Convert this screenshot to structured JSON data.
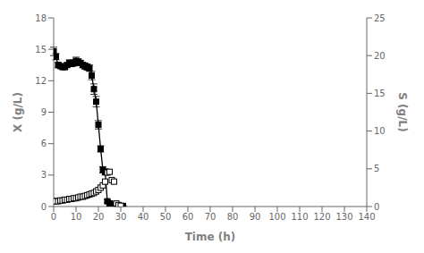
{
  "chart_data": {
    "type": "line",
    "title": "",
    "xlabel": "Time (h)",
    "ylabel": "X (g/L)",
    "y2label": "S (g/L)",
    "xlim": [
      0,
      140
    ],
    "xticks": [
      0,
      10,
      20,
      30,
      40,
      50,
      60,
      70,
      80,
      90,
      100,
      110,
      120,
      130,
      140
    ],
    "ylim": [
      0,
      18
    ],
    "yticks": [
      0,
      3,
      6,
      9,
      12,
      15,
      18
    ],
    "y2lim": [
      0,
      25
    ],
    "y2ticks": [
      0,
      5,
      10,
      15,
      20,
      25
    ],
    "grid": false,
    "series": [
      {
        "type": "line",
        "color": "#000000",
        "marker": "square",
        "line_style": "solid",
        "x": [
          0,
          1,
          2,
          3,
          4,
          5,
          6,
          7,
          8,
          9,
          10,
          11,
          12,
          13,
          14,
          15,
          16,
          17,
          18,
          19,
          20,
          21,
          22,
          23,
          24,
          25,
          26,
          27,
          28,
          29,
          30,
          31
        ],
        "values": [
          14.8,
          14.3,
          13.5,
          13.4,
          13.3,
          13.3,
          13.5,
          13.7,
          13.6,
          13.7,
          13.9,
          13.8,
          13.7,
          13.5,
          13.4,
          13.3,
          13.2,
          12.5,
          11.2,
          10.0,
          7.8,
          5.5,
          3.5,
          3.3,
          0.5,
          0.3,
          0.2,
          0.1,
          0.05,
          0.05,
          0.05,
          0.05
        ],
        "yerr": [
          0.4,
          0.3,
          0.25,
          0.2,
          0.2,
          0.2,
          0.2,
          0.3,
          0.25,
          0.3,
          0.35,
          0.3,
          0.25,
          0.25,
          0.3,
          0.3,
          0.3,
          0.4,
          0.5,
          0.5,
          0.4,
          0.3,
          0.3,
          0.3,
          0.15,
          0.1,
          0.05,
          0.05,
          0.03,
          0.03,
          0.03,
          0.03
        ]
      },
      {
        "type": "scatter",
        "axis": "y2",
        "color": "#000000",
        "marker": "square_open",
        "line_style": "none",
        "x": [
          0,
          1,
          2,
          3,
          4,
          5,
          6,
          7,
          8,
          9,
          10,
          11,
          12,
          13,
          14,
          15,
          16,
          17,
          18,
          19,
          20,
          21,
          22,
          23,
          24,
          25,
          26,
          27,
          28,
          29,
          30
        ],
        "values": [
          0.7,
          0.7,
          0.7,
          0.8,
          0.8,
          0.9,
          0.9,
          1.0,
          1.0,
          1.1,
          1.1,
          1.2,
          1.3,
          1.3,
          1.4,
          1.5,
          1.6,
          1.7,
          1.8,
          2.0,
          2.2,
          2.5,
          2.8,
          3.3,
          4.5,
          4.6,
          3.5,
          3.3,
          0.4,
          0.2,
          0.1
        ]
      }
    ]
  }
}
